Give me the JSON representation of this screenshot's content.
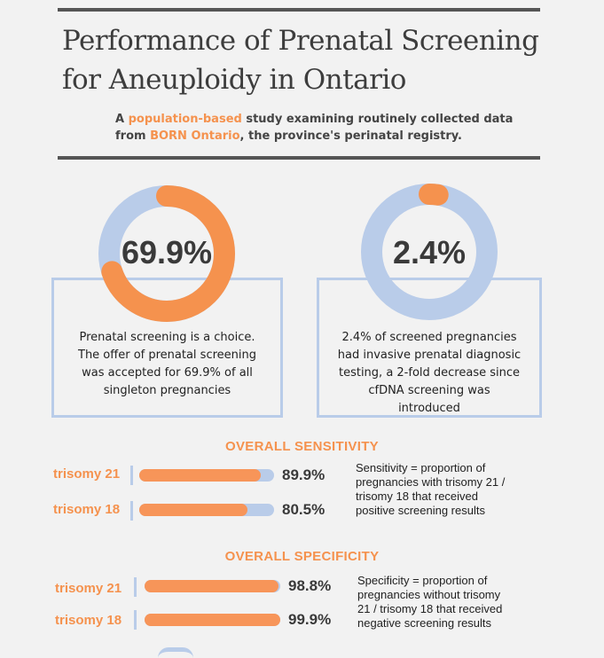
{
  "header": {
    "title_line1": "Performance of Prenatal Screening",
    "title_line2": "for Aneuploidy in Ontario",
    "subtitle": {
      "p1": "A ",
      "h1": "population-based",
      "p2": " study examining routinely collected data",
      "p3": "from ",
      "h2": "BORN Ontario",
      "p4": ", the province's perinatal registry."
    }
  },
  "stats": [
    {
      "value_text": "69.9%",
      "value": 69.9,
      "description": [
        "Prenatal screening is a choice.",
        "The offer of prenatal screening",
        "was accepted for 69.9% of all",
        "singleton pregnancies"
      ]
    },
    {
      "value_text": "2.4%",
      "value": 2.4,
      "description": [
        "2.4% of screened pregnancies",
        "had invasive prenatal diagnosic",
        "testing, a 2-fold decrease since",
        "cfDNA screening was",
        "introduced"
      ]
    }
  ],
  "sensitivity": {
    "title": "OVERALL SENSITIVITY",
    "rows": [
      {
        "label": "trisomy 21",
        "value_text": "89.9%",
        "value": 89.9
      },
      {
        "label": "trisomy 18",
        "value_text": "80.5%",
        "value": 80.5
      }
    ],
    "definition": [
      "Sensitivity = proportion of",
      "pregnancies with trisomy 21 /",
      "trisomy 18 that received",
      "positive screening results"
    ]
  },
  "specificity": {
    "title": "OVERALL SPECIFICITY",
    "rows": [
      {
        "label": "trisomy 21",
        "value_text": "98.8%",
        "value": 98.8
      },
      {
        "label": "trisomy 18",
        "value_text": "99.9%",
        "value": 99.9
      }
    ],
    "definition": [
      "Specificity = proportion of",
      "pregnancies without trisomy",
      "21 / trisomy 18 that received",
      "negative screening results"
    ]
  },
  "colors": {
    "accent": "#f5924e",
    "track": "#b9cce9",
    "rule": "#555555"
  }
}
